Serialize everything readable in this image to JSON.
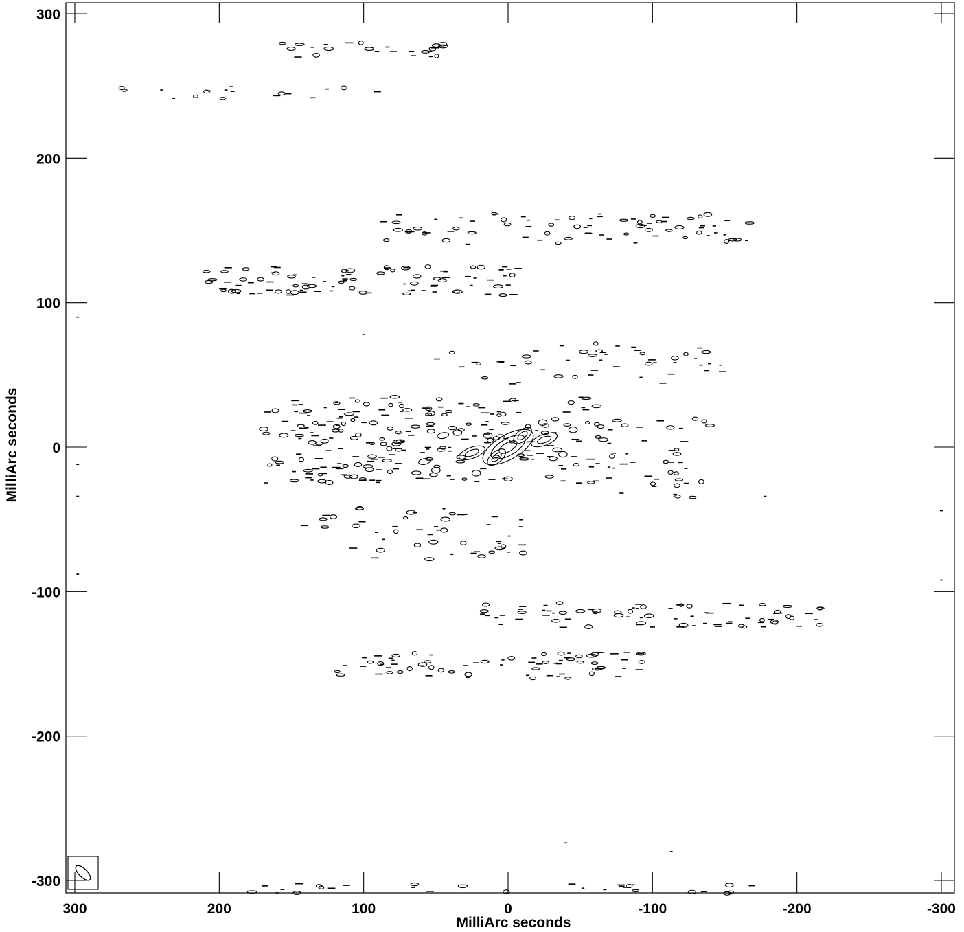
{
  "chart_data": {
    "type": "contour",
    "title": "",
    "xlabel": "MilliArc seconds",
    "ylabel": "MilliArc seconds",
    "xlim": [
      300,
      -300
    ],
    "ylim": [
      -310,
      305
    ],
    "x_reversed": true,
    "x_ticks": [
      300,
      200,
      100,
      0,
      -100,
      -200,
      -300
    ],
    "x_tick_labels": [
      "300",
      "200",
      "100",
      "0",
      "-100",
      "-200",
      "-300"
    ],
    "y_ticks": [
      300,
      200,
      100,
      0,
      -100,
      -200,
      -300
    ],
    "y_tick_labels": [
      "300",
      "200",
      "100",
      "0",
      "-100",
      "-200",
      "-300"
    ],
    "grid": false,
    "legend": "none",
    "line_color": "#000000",
    "beam": {
      "ra_offset": 292,
      "dec_offset": -294,
      "major": 14,
      "minor": 5,
      "position_angle_deg": 45
    },
    "core": {
      "components": [
        {
          "ra": 0,
          "dec": 0,
          "major": 7,
          "minor": 3,
          "pa_deg": 30,
          "levels": 3
        },
        {
          "ra": -10,
          "dec": 8,
          "major": 4,
          "minor": 2,
          "pa_deg": 40,
          "levels": 2
        },
        {
          "ra": 8,
          "dec": -7,
          "major": 4,
          "minor": 2,
          "pa_deg": 40,
          "levels": 2
        },
        {
          "ra": 25,
          "dec": -4,
          "major": 5,
          "minor": 2,
          "pa_deg": 20,
          "levels": 2
        },
        {
          "ra": -25,
          "dec": 5,
          "major": 5,
          "minor": 2,
          "pa_deg": 20,
          "levels": 2
        },
        {
          "ra": -24,
          "dec": 17,
          "major": 3,
          "minor": 2,
          "pa_deg": 0,
          "levels": 1
        },
        {
          "ra": 22,
          "dec": -18,
          "major": 3,
          "minor": 2,
          "pa_deg": 0,
          "levels": 1
        },
        {
          "ra": 45,
          "dec": 8,
          "major": 4,
          "minor": 2,
          "pa_deg": 10,
          "levels": 1
        },
        {
          "ra": 58,
          "dec": -10,
          "major": 4,
          "minor": 2,
          "pa_deg": 10,
          "levels": 1
        },
        {
          "ra": 50,
          "dec": -16,
          "major": 3,
          "minor": 2,
          "pa_deg": 0,
          "levels": 1
        },
        {
          "ra": -45,
          "dec": 12,
          "major": 3,
          "minor": 2,
          "pa_deg": 0,
          "levels": 1
        },
        {
          "ra": 35,
          "dec": 10,
          "major": 3,
          "minor": 2,
          "pa_deg": 0,
          "levels": 1
        },
        {
          "ra": -38,
          "dec": -5,
          "major": 3,
          "minor": 2,
          "pa_deg": 0,
          "levels": 1
        },
        {
          "ra": 14,
          "dec": 8,
          "major": 3,
          "minor": 2,
          "pa_deg": 0,
          "levels": 1
        },
        {
          "ra": 0,
          "dec": -22,
          "major": 3,
          "minor": 1.5,
          "pa_deg": 0,
          "levels": 1
        }
      ]
    },
    "blob_bands": [
      {
        "ra_min": -70,
        "ra_max": 150,
        "dec_min": -25,
        "dec_max": 35,
        "count": 190,
        "seed": 11
      },
      {
        "ra_min": -140,
        "ra_max": -70,
        "dec_min": -35,
        "dec_max": 20,
        "count": 40,
        "seed": 12
      },
      {
        "ra_min": 70,
        "ra_max": 170,
        "dec_min": -25,
        "dec_max": 35,
        "count": 50,
        "seed": 13
      },
      {
        "ra_min": -150,
        "ra_max": 50,
        "dec_min": 42,
        "dec_max": 72,
        "count": 50,
        "seed": 14
      },
      {
        "ra_min": -30,
        "ra_max": 150,
        "dec_min": -78,
        "dec_max": -40,
        "count": 50,
        "seed": 15
      },
      {
        "ra_min": -170,
        "ra_max": 100,
        "dec_min": 140,
        "dec_max": 162,
        "count": 75,
        "seed": 16
      },
      {
        "ra_min": -10,
        "ra_max": 210,
        "dec_min": 105,
        "dec_max": 125,
        "count": 95,
        "seed": 17
      },
      {
        "ra_min": -220,
        "ra_max": 20,
        "dec_min": -125,
        "dec_max": -108,
        "count": 80,
        "seed": 18
      },
      {
        "ra_min": -95,
        "ra_max": 125,
        "dec_min": -160,
        "dec_max": -142,
        "count": 75,
        "seed": 19
      },
      {
        "ra_min": 35,
        "ra_max": 160,
        "dec_min": 270,
        "dec_max": 280,
        "count": 25,
        "seed": 20
      },
      {
        "ra_min": 90,
        "ra_max": 275,
        "dec_min": 240,
        "dec_max": 250,
        "count": 18,
        "seed": 21
      },
      {
        "ra_min": -180,
        "ra_max": 195,
        "dec_min": -309,
        "dec_max": -302,
        "count": 30,
        "seed": 22
      }
    ],
    "isolated_marks": [
      {
        "ra": 298,
        "dec": 90
      },
      {
        "ra": 298,
        "dec": -12
      },
      {
        "ra": 298,
        "dec": -34
      },
      {
        "ra": 298,
        "dec": -88
      },
      {
        "ra": -300,
        "dec": -44
      },
      {
        "ra": -300,
        "dec": -92
      },
      {
        "ra": -40,
        "dec": -274
      },
      {
        "ra": -113,
        "dec": -280
      },
      {
        "ra": -178,
        "dec": -34
      },
      {
        "ra": -150,
        "dec": 147
      },
      {
        "ra": -165,
        "dec": 143
      },
      {
        "ra": 100,
        "dec": 78
      }
    ]
  }
}
